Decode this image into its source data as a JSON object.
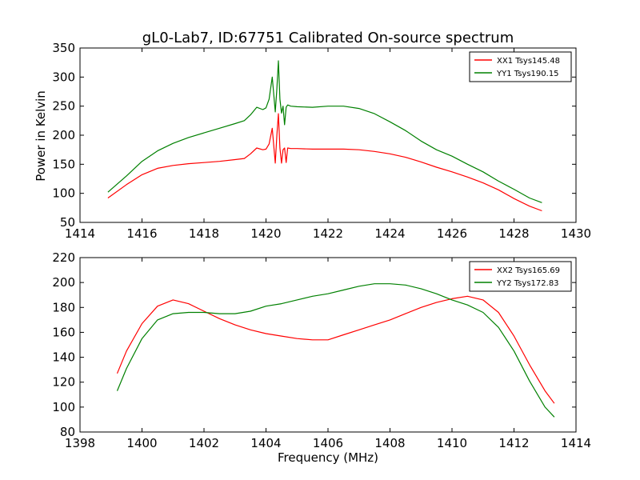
{
  "chart_data": [
    {
      "type": "line",
      "title": "gL0-Lab7, ID:67751 Calibrated On-source spectrum",
      "xlabel": "",
      "ylabel": "Power in Kelvin",
      "xlim": [
        1414,
        1430
      ],
      "ylim": [
        50,
        350
      ],
      "xticks": [
        "1414",
        "1416",
        "1418",
        "1420",
        "1422",
        "1424",
        "1426",
        "1428",
        "1430"
      ],
      "yticks": [
        "50",
        "100",
        "150",
        "200",
        "250",
        "300",
        "350"
      ],
      "grid": false,
      "legend_position": "top-right",
      "series": [
        {
          "name": "XX1 Tsys145.48",
          "color": "#ff0000",
          "x": [
            1414.9,
            1415.5,
            1416.0,
            1416.5,
            1417.0,
            1417.5,
            1418.0,
            1418.5,
            1419.0,
            1419.3,
            1419.5,
            1419.7,
            1419.9,
            1420.0,
            1420.1,
            1420.2,
            1420.3,
            1420.35,
            1420.4,
            1420.45,
            1420.5,
            1420.55,
            1420.6,
            1420.65,
            1420.7,
            1420.8,
            1421.0,
            1421.5,
            1422.0,
            1422.5,
            1423.0,
            1423.5,
            1424.0,
            1424.5,
            1425.0,
            1425.5,
            1426.0,
            1426.5,
            1427.0,
            1427.5,
            1428.0,
            1428.5,
            1428.9
          ],
          "y": [
            92,
            115,
            132,
            143,
            148,
            151,
            153,
            155,
            158,
            160,
            168,
            178,
            175,
            176,
            185,
            212,
            152,
            200,
            237,
            178,
            152,
            175,
            178,
            153,
            178,
            177,
            177,
            176,
            176,
            176,
            175,
            172,
            168,
            162,
            154,
            145,
            137,
            128,
            118,
            106,
            91,
            78,
            70
          ]
        },
        {
          "name": "YY1 Tsys190.15",
          "color": "#008000",
          "x": [
            1414.9,
            1415.5,
            1416.0,
            1416.5,
            1417.0,
            1417.5,
            1418.0,
            1418.5,
            1419.0,
            1419.3,
            1419.5,
            1419.7,
            1419.9,
            1420.0,
            1420.1,
            1420.2,
            1420.3,
            1420.35,
            1420.4,
            1420.45,
            1420.5,
            1420.55,
            1420.6,
            1420.65,
            1420.7,
            1420.8,
            1421.0,
            1421.5,
            1422.0,
            1422.5,
            1423.0,
            1423.5,
            1424.0,
            1424.5,
            1425.0,
            1425.5,
            1426.0,
            1426.5,
            1427.0,
            1427.5,
            1428.0,
            1428.5,
            1428.9
          ],
          "y": [
            102,
            130,
            155,
            173,
            186,
            196,
            204,
            212,
            220,
            225,
            235,
            248,
            244,
            247,
            262,
            300,
            240,
            280,
            328,
            262,
            238,
            250,
            218,
            248,
            252,
            250,
            249,
            248,
            250,
            250,
            246,
            237,
            223,
            208,
            190,
            175,
            164,
            150,
            137,
            121,
            107,
            92,
            84
          ]
        }
      ]
    },
    {
      "type": "line",
      "title": "",
      "xlabel": "Frequency (MHz)",
      "ylabel": "",
      "xlim": [
        1398,
        1414
      ],
      "ylim": [
        80,
        220
      ],
      "xticks": [
        "1398",
        "1400",
        "1402",
        "1404",
        "1406",
        "1408",
        "1410",
        "1412",
        "1414"
      ],
      "yticks": [
        "80",
        "100",
        "120",
        "140",
        "160",
        "180",
        "200",
        "220"
      ],
      "grid": false,
      "legend_position": "top-right",
      "series": [
        {
          "name": "XX2 Tsys165.69",
          "color": "#ff0000",
          "x": [
            1399.2,
            1399.5,
            1400.0,
            1400.5,
            1401.0,
            1401.5,
            1402.0,
            1402.5,
            1403.0,
            1403.5,
            1404.0,
            1404.5,
            1405.0,
            1405.5,
            1406.0,
            1406.5,
            1407.0,
            1407.5,
            1408.0,
            1408.5,
            1409.0,
            1409.5,
            1410.0,
            1410.5,
            1411.0,
            1411.5,
            1412.0,
            1412.5,
            1413.0,
            1413.3
          ],
          "y": [
            127,
            145,
            167,
            181,
            186,
            183,
            177,
            171,
            166,
            162,
            159,
            157,
            155,
            154,
            154,
            158,
            162,
            166,
            170,
            175,
            180,
            184,
            187,
            189,
            186,
            176,
            157,
            134,
            113,
            103
          ]
        },
        {
          "name": "YY2 Tsys172.83",
          "color": "#008000",
          "x": [
            1399.2,
            1399.5,
            1400.0,
            1400.5,
            1401.0,
            1401.5,
            1402.0,
            1402.5,
            1403.0,
            1403.5,
            1404.0,
            1404.5,
            1405.0,
            1405.5,
            1406.0,
            1406.5,
            1407.0,
            1407.5,
            1408.0,
            1408.5,
            1409.0,
            1409.5,
            1410.0,
            1410.5,
            1411.0,
            1411.5,
            1412.0,
            1412.5,
            1413.0,
            1413.3
          ],
          "y": [
            113,
            131,
            155,
            170,
            175,
            176,
            176,
            175,
            175,
            177,
            181,
            183,
            186,
            189,
            191,
            194,
            197,
            199,
            199,
            198,
            195,
            191,
            186,
            182,
            176,
            164,
            145,
            121,
            100,
            92
          ]
        }
      ]
    }
  ]
}
